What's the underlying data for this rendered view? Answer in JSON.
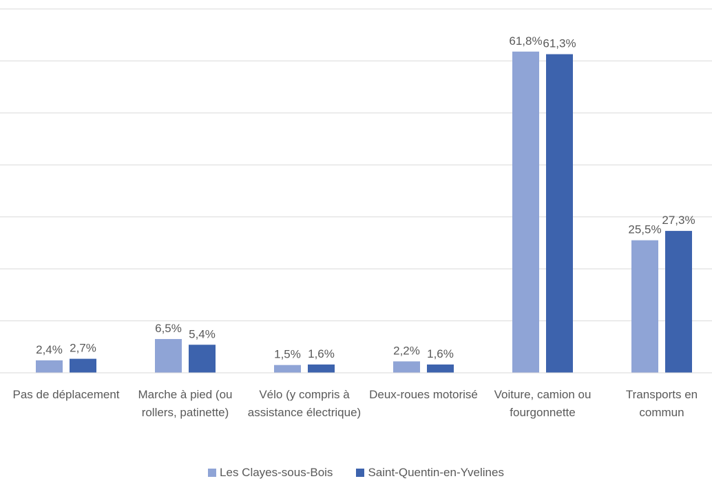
{
  "chart_data": {
    "type": "bar",
    "categories": [
      "Pas de déplacement",
      "Marche à pied (ou rollers, patinette)",
      "Vélo (y compris à assistance électrique)",
      "Deux-roues motorisé",
      "Voiture, camion ou fourgonnette",
      "Transports en commun"
    ],
    "series": [
      {
        "name": "Les Clayes-sous-Bois",
        "color": "#8fa4d6",
        "values": [
          2.4,
          6.5,
          1.5,
          2.2,
          61.8,
          25.5
        ],
        "value_labels": [
          "2,4%",
          "6,5%",
          "1,5%",
          "2,2%",
          "61,8%",
          "25,5%"
        ]
      },
      {
        "name": "Saint-Quentin-en-Yvelines",
        "color": "#3d63ad",
        "values": [
          2.7,
          5.4,
          1.6,
          1.6,
          61.3,
          27.3
        ],
        "value_labels": [
          "2,7%",
          "5,4%",
          "1,6%",
          "1,6%",
          "61,3%",
          "27,3%"
        ]
      }
    ],
    "ylim": [
      0,
      70
    ],
    "yticks": [
      0,
      10,
      20,
      30,
      40,
      50,
      60,
      70
    ],
    "grid": true,
    "legend": "bottom"
  }
}
